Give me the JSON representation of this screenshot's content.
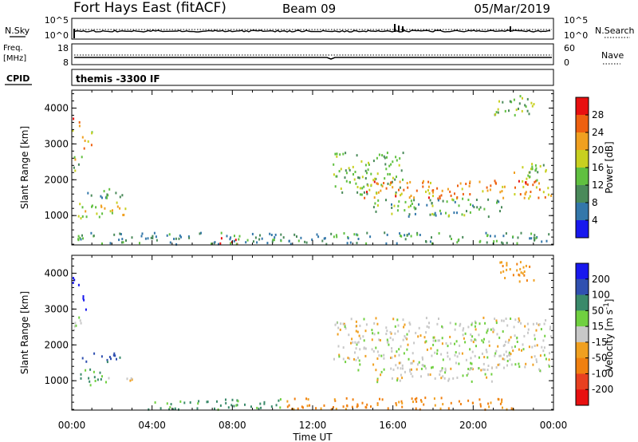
{
  "header": {
    "station": "Fort Hays East (fitACF)",
    "beam": "Beam 09",
    "date": "05/Mar/2019"
  },
  "noise_panel": {
    "left_label": "N.Sky",
    "right_label": "N.Search",
    "left_ticks": [
      "10^5",
      "10^0"
    ],
    "right_ticks": [
      "10^5",
      "10^0"
    ]
  },
  "freq_panel": {
    "left_label_1": "Freq.",
    "left_label_2": "[MHz]",
    "right_label": "Nave",
    "left_ticks": [
      "18",
      "8"
    ],
    "right_ticks": [
      "60",
      "0"
    ]
  },
  "cpid_panel": {
    "label": "CPID",
    "text": "themis -3300 IF"
  },
  "colors": {
    "power_scale": [
      "#1818ee",
      "#3377aa",
      "#4a8a5a",
      "#60c040",
      "#c8d020",
      "#f0a020",
      "#ee6010",
      "#e81010"
    ],
    "velocity_scale": [
      "#1818ee",
      "#3050b0",
      "#3a8a6a",
      "#70d040",
      "#c8c8c8",
      "#f0a020",
      "#f08010",
      "#e84020",
      "#e81010"
    ],
    "ground_scatter": "#c8c8c8"
  },
  "chart_data": [
    {
      "type": "heatmap",
      "name": "power",
      "xlabel": "Time UT",
      "ylabel": "Slant Range [km]",
      "x_ticks": [
        "00:00",
        "04:00",
        "08:00",
        "12:00",
        "16:00",
        "20:00",
        "00:00"
      ],
      "y_ticks": [
        1000,
        2000,
        3000,
        4000
      ],
      "ylim": [
        180,
        4500
      ],
      "xlim_hours": [
        0,
        24
      ],
      "colorbar_label": "Power [dB]",
      "colorbar_ticks": [
        4,
        8,
        12,
        16,
        20,
        24,
        28
      ],
      "colorbar_range": [
        0,
        30
      ],
      "regions": [
        {
          "t0": 0.0,
          "t1": 0.45,
          "r0": 3400,
          "r1": 3800,
          "level": 22
        },
        {
          "t0": 0.0,
          "t1": 0.5,
          "r0": 2200,
          "r1": 2700,
          "level": 14
        },
        {
          "t0": 0.45,
          "t1": 1.0,
          "r0": 2800,
          "r1": 3400,
          "level": 18
        },
        {
          "t0": 0.5,
          "t1": 2.6,
          "r0": 1500,
          "r1": 1800,
          "level": 10
        },
        {
          "t0": 0.3,
          "t1": 2.8,
          "r0": 950,
          "r1": 1400,
          "level": 17
        },
        {
          "t0": 7.0,
          "t1": 8.3,
          "r0": 230,
          "r1": 420,
          "level": 28
        },
        {
          "t0": 0.2,
          "t1": 24.0,
          "r0": 190,
          "r1": 560,
          "level": 9
        },
        {
          "t0": 13.0,
          "t1": 16.5,
          "r0": 1600,
          "r1": 2800,
          "level": 13
        },
        {
          "t0": 14.5,
          "t1": 24.0,
          "r0": 1500,
          "r1": 2000,
          "level": 22
        },
        {
          "t0": 15.0,
          "t1": 21.5,
          "r0": 1000,
          "r1": 1500,
          "level": 11
        },
        {
          "t0": 21.0,
          "t1": 23.0,
          "r0": 3800,
          "r1": 4400,
          "level": 13
        },
        {
          "t0": 22.0,
          "t1": 24.0,
          "r0": 2000,
          "r1": 2500,
          "level": 14
        }
      ]
    },
    {
      "type": "heatmap",
      "name": "velocity",
      "xlabel": "Time UT",
      "ylabel": "Slant Range [km]",
      "x_ticks": [
        "00:00",
        "04:00",
        "08:00",
        "12:00",
        "16:00",
        "20:00",
        "00:00"
      ],
      "y_ticks": [
        1000,
        2000,
        3000,
        4000
      ],
      "ylim": [
        180,
        4500
      ],
      "xlim_hours": [
        0,
        24
      ],
      "colorbar_label": "Velocity [m s^-1]",
      "colorbar_ticks": [
        "200",
        "100",
        "50",
        "15",
        "-15",
        "-50",
        "-100",
        "-200"
      ],
      "regions": [
        {
          "t0": 0.0,
          "t1": 0.4,
          "r0": 3500,
          "r1": 3900,
          "level": 230
        },
        {
          "t0": 0.4,
          "t1": 0.9,
          "r0": 3000,
          "r1": 3400,
          "level": 230
        },
        {
          "t0": 0.0,
          "t1": 0.6,
          "r0": 2300,
          "r1": 2800,
          "level": 0
        },
        {
          "t0": 0.5,
          "t1": 2.5,
          "r0": 1500,
          "r1": 1800,
          "level": 90
        },
        {
          "t0": 0.3,
          "t1": 1.8,
          "r0": 900,
          "r1": 1350,
          "level": 40
        },
        {
          "t0": 1.8,
          "t1": 3.0,
          "r0": 1000,
          "r1": 1200,
          "level": 0
        },
        {
          "t0": 3.5,
          "t1": 10.5,
          "r0": 200,
          "r1": 520,
          "level": 40
        },
        {
          "t0": 10.5,
          "t1": 22.0,
          "r0": 200,
          "r1": 560,
          "level": -60
        },
        {
          "t0": 13.0,
          "t1": 24.0,
          "r0": 1300,
          "r1": 2800,
          "level": 0
        },
        {
          "t0": 15.0,
          "t1": 21.0,
          "r0": 1000,
          "r1": 1400,
          "level": 0
        },
        {
          "t0": 21.0,
          "t1": 23.0,
          "r0": 3800,
          "r1": 4400,
          "level": -40
        }
      ]
    }
  ]
}
